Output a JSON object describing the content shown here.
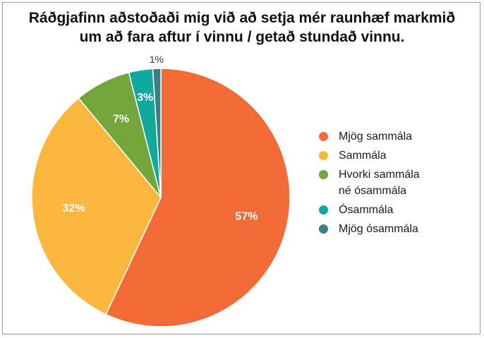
{
  "chart_data": {
    "type": "pie",
    "title_lines": [
      "Ráðgjafinn aðstoðaði mig við að setja mér raunhæf markmið",
      "um að fara aftur í vinnu / getað stundað vinnu."
    ],
    "categories": [
      "Mjög sammála",
      "Sammála",
      "Hvorki sammála\nné ósammála",
      "Ósammála",
      "Mjög ósammála"
    ],
    "values": [
      57,
      32,
      7,
      3,
      1
    ],
    "data_labels": [
      "57%",
      "32%",
      "7%",
      "3%",
      "1%"
    ],
    "colors": [
      "#f26a36",
      "#fbb63d",
      "#72a53a",
      "#13a89d",
      "#3b7f82"
    ],
    "legend_position": "right"
  }
}
